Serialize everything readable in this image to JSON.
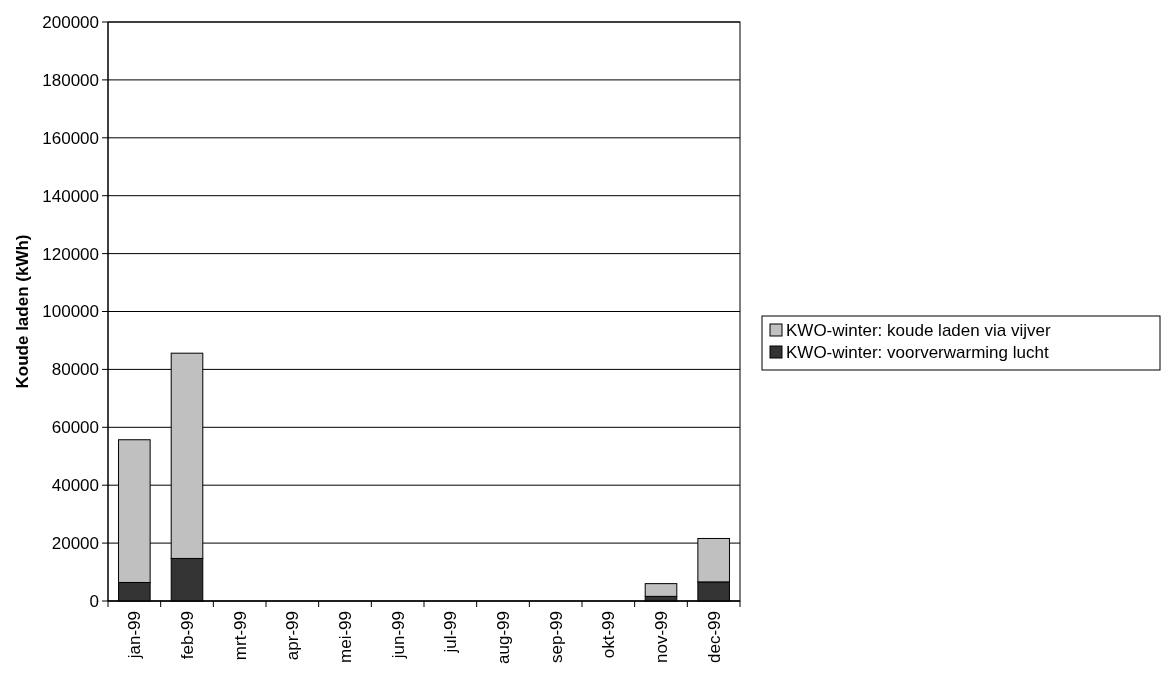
{
  "chart_data": {
    "type": "bar",
    "ylabel": "Koude laden (kWh)",
    "categories": [
      "jan-99",
      "feb-99",
      "mrt-99",
      "apr-99",
      "mei-99",
      "jun-99",
      "jul-99",
      "aug-99",
      "sep-99",
      "okt-99",
      "nov-99",
      "dec-99"
    ],
    "series": [
      {
        "name": "KWO-winter: voorverwarming lucht",
        "color": "#333333",
        "values": [
          6400,
          14700,
          0,
          0,
          0,
          0,
          0,
          0,
          0,
          0,
          1600,
          6600
        ]
      },
      {
        "name": "KWO-winter: koude laden via vijver",
        "color": "#c0c0c0",
        "values": [
          49300,
          70900,
          0,
          0,
          0,
          0,
          0,
          0,
          0,
          0,
          4400,
          15000
        ]
      }
    ],
    "stacked": true,
    "ylim": [
      0,
      200000
    ],
    "yticks": [
      0,
      20000,
      40000,
      60000,
      80000,
      100000,
      120000,
      140000,
      160000,
      180000,
      200000
    ],
    "grid": "y",
    "legend": "right"
  }
}
